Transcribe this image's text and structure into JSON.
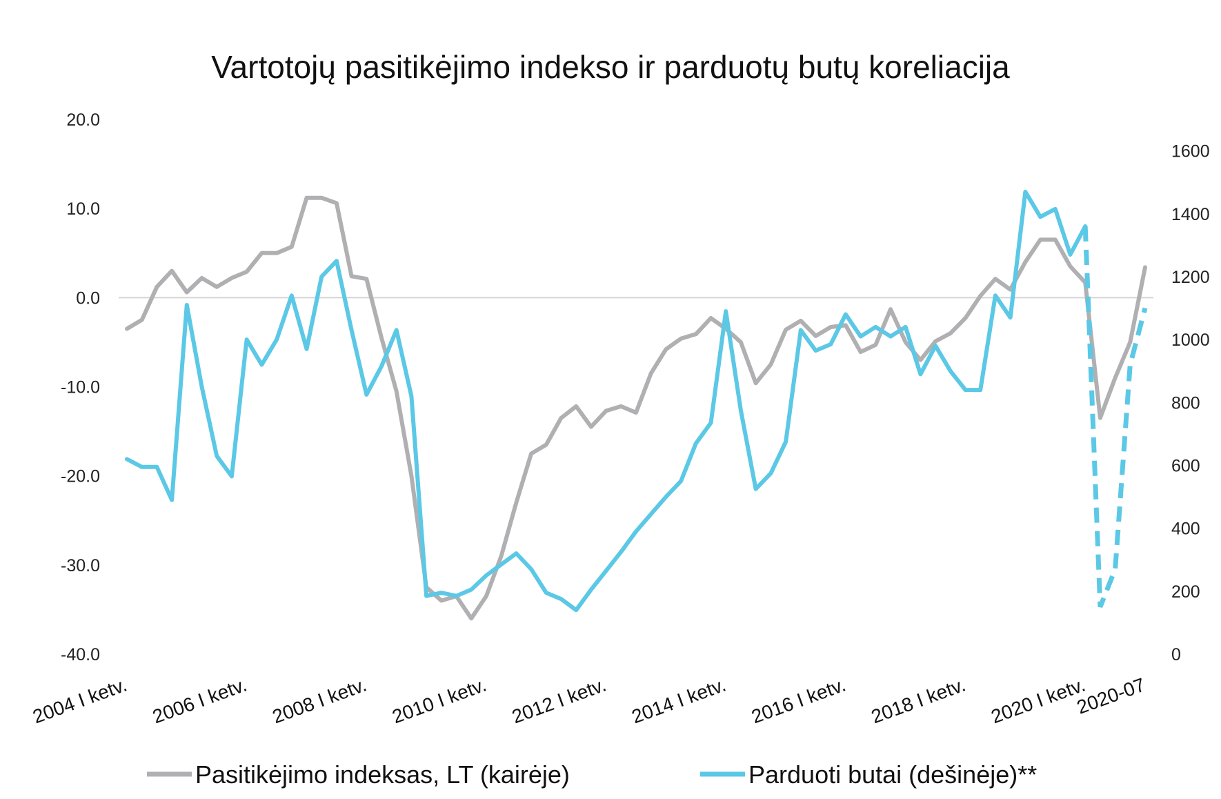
{
  "chart_data": {
    "type": "line",
    "title": "Vartotojų pasitikėjimo indekso ir parduotų butų koreliacija",
    "left_axis": {
      "ylim": [
        -40,
        20
      ],
      "ticks": [
        "20.0",
        "10.0",
        "0.0",
        "-10.0",
        "-20.0",
        "-30.0",
        "-40.0"
      ]
    },
    "right_axis": {
      "ylim": [
        0,
        1700
      ],
      "ticks": [
        "1600",
        "1400",
        "1200",
        "1000",
        "800",
        "600",
        "400",
        "200",
        "0"
      ]
    },
    "x_tick_labels": [
      "2004 I ketv.",
      "2006 I ketv.",
      "2008 I ketv.",
      "2010 I ketv.",
      "2012 I ketv.",
      "2014 I ketv.",
      "2016 I ketv.",
      "2018 I ketv.",
      "2020 I ketv.",
      "2020-07"
    ],
    "zero_line": true,
    "legend_position": "bottom",
    "series": [
      {
        "name": "Pasitikėjimo indeksas, LT (kairėje)",
        "axis": "left",
        "color": "#b0b0b3",
        "values": [
          -3.5,
          -2.5,
          1.2,
          3.0,
          0.6,
          2.2,
          1.2,
          2.2,
          2.9,
          5.0,
          5.0,
          5.7,
          11.2,
          11.2,
          10.6,
          2.4,
          2.1,
          -4.5,
          -10.5,
          -20.0,
          -32.5,
          -34.0,
          -33.5,
          -36.0,
          -33.5,
          -29.0,
          -23.0,
          -17.5,
          -16.5,
          -13.5,
          -12.2,
          -14.5,
          -12.7,
          -12.2,
          -12.9,
          -8.5,
          -5.8,
          -4.6,
          -4.1,
          -2.3,
          -3.5,
          -5.0,
          -9.6,
          -7.5,
          -3.6,
          -2.6,
          -4.3,
          -3.3,
          -3.1,
          -6.1,
          -5.3,
          -1.3,
          -5.0,
          -7.0,
          -4.9,
          -4.0,
          -2.3,
          0.2,
          2.1,
          0.9,
          4.0,
          6.5,
          6.5,
          3.5,
          1.7,
          -13.5,
          -9.0,
          -5.0,
          3.4
        ]
      },
      {
        "name": "Parduoti butai (dešinėje)**",
        "axis": "right",
        "color": "#5bc8e6",
        "values": [
          620,
          595,
          595,
          490,
          1110,
          850,
          630,
          565,
          1000,
          920,
          1000,
          1140,
          970,
          1200,
          1250,
          1030,
          825,
          915,
          1030,
          820,
          185,
          195,
          185,
          205,
          250,
          285,
          320,
          270,
          195,
          175,
          140,
          205,
          265,
          325,
          390,
          445,
          500,
          550,
          670,
          735,
          1090,
          775,
          525,
          575,
          675,
          1030,
          965,
          985,
          1080,
          1010,
          1040,
          1010,
          1040,
          890,
          980,
          900,
          840,
          840,
          1140,
          1070,
          1470,
          1390,
          1415,
          1270,
          1360,
          150,
          270,
          920,
          1100
        ],
        "dashed_from_index": 64
      }
    ]
  }
}
